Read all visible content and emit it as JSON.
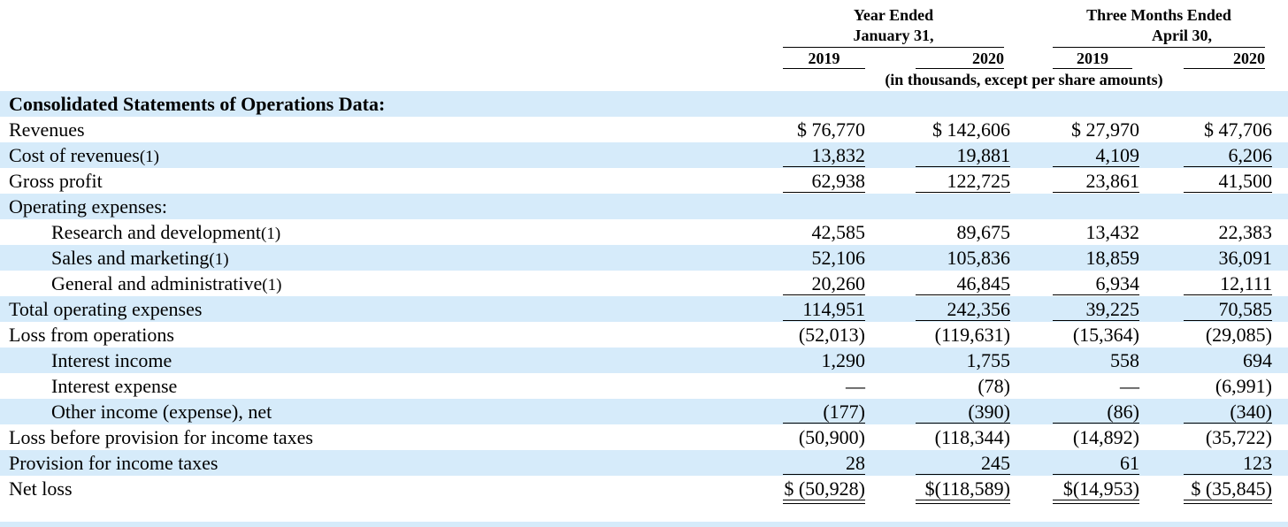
{
  "header": {
    "group1": {
      "line1": "Year Ended",
      "line2": "January 31,"
    },
    "group2": {
      "line1": "Three Months Ended",
      "line2": "April 30,"
    },
    "years": [
      "2019",
      "2020",
      "2019",
      "2020"
    ],
    "subtitle": "(in thousands, except per share amounts)"
  },
  "section_title": "Consolidated Statements of Operations Data:",
  "rows": [
    {
      "label": "Revenues",
      "footnote": "",
      "indent": false,
      "shade": false,
      "values": [
        "$ 76,770",
        "$ 142,606",
        "$ 27,970",
        "$ 47,706"
      ]
    },
    {
      "label": "Cost of revenues",
      "footnote": "(1)",
      "indent": false,
      "shade": true,
      "values": [
        "13,832",
        "19,881",
        "4,109",
        "6,206"
      ]
    },
    {
      "label": "Gross profit",
      "footnote": "",
      "indent": false,
      "shade": false,
      "values": [
        "62,938",
        "122,725",
        "23,861",
        "41,500"
      ]
    },
    {
      "label": "Operating expenses:",
      "footnote": "",
      "indent": false,
      "shade": true,
      "values": [
        "",
        "",
        "",
        ""
      ]
    },
    {
      "label": "Research and development",
      "footnote": "(1)",
      "indent": true,
      "shade": false,
      "values": [
        "42,585",
        "89,675",
        "13,432",
        "22,383"
      ]
    },
    {
      "label": "Sales and marketing",
      "footnote": "(1)",
      "indent": true,
      "shade": true,
      "values": [
        "52,106",
        "105,836",
        "18,859",
        "36,091"
      ]
    },
    {
      "label": "General and administrative",
      "footnote": "(1)",
      "indent": true,
      "shade": false,
      "values": [
        "20,260",
        "46,845",
        "6,934",
        "12,111"
      ]
    },
    {
      "label": "Total operating expenses",
      "footnote": "",
      "indent": false,
      "shade": true,
      "values": [
        "114,951",
        "242,356",
        "39,225",
        "70,585"
      ]
    },
    {
      "label": "Loss from operations",
      "footnote": "",
      "indent": false,
      "shade": false,
      "values": [
        "(52,013)",
        "(119,631)",
        "(15,364)",
        "(29,085)"
      ]
    },
    {
      "label": "Interest income",
      "footnote": "",
      "indent": true,
      "shade": true,
      "values": [
        "1,290",
        "1,755",
        "558",
        "694"
      ]
    },
    {
      "label": "Interest expense",
      "footnote": "",
      "indent": true,
      "shade": false,
      "values": [
        "—",
        "(78)",
        "—",
        "(6,991)"
      ]
    },
    {
      "label": "Other income (expense), net",
      "footnote": "",
      "indent": true,
      "shade": true,
      "values": [
        "(177)",
        "(390)",
        "(86)",
        "(340)"
      ]
    },
    {
      "label": "Loss before provision for income taxes",
      "footnote": "",
      "indent": false,
      "shade": false,
      "values": [
        "(50,900)",
        "(118,344)",
        "(14,892)",
        "(35,722)"
      ]
    },
    {
      "label": "Provision for income taxes",
      "footnote": "",
      "indent": false,
      "shade": true,
      "values": [
        "28",
        "245",
        "61",
        "123"
      ]
    },
    {
      "label": "Net loss",
      "footnote": "",
      "indent": false,
      "shade": false,
      "values": [
        "$ (50,928)",
        "$(118,589)",
        "$(14,953)",
        "$ (35,845)"
      ]
    }
  ],
  "colors": {
    "row_shade": "#d6ebfa"
  }
}
